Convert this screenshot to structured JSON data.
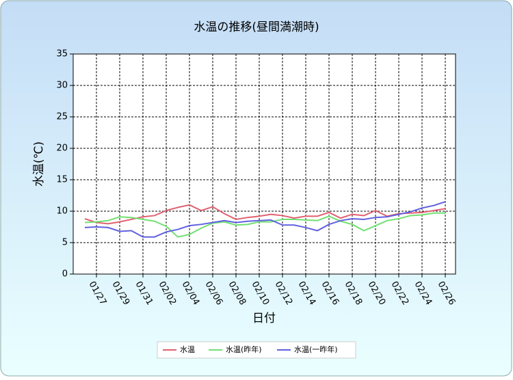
{
  "chart_data": {
    "type": "line",
    "title": "水温の推移(昼間満潮時)",
    "x_label": "日付",
    "y_label": "水温(℃)",
    "categories": [
      null,
      "01/27",
      null,
      "01/29",
      null,
      "01/31",
      null,
      "02/02",
      null,
      "02/04",
      null,
      "02/06",
      null,
      "02/08",
      null,
      "02/10",
      null,
      "02/12",
      null,
      "02/14",
      null,
      "02/16",
      null,
      "02/18",
      null,
      "02/20",
      null,
      "02/22",
      null,
      "02/24",
      null,
      "02/26"
    ],
    "series": [
      {
        "name": "水温",
        "color": "#e06070",
        "values": [
          8.8,
          8.2,
          8.0,
          8.3,
          8.7,
          9.1,
          9.3,
          10.1,
          10.6,
          11.0,
          10.1,
          10.7,
          9.6,
          8.7,
          9.0,
          9.2,
          9.5,
          9.3,
          8.9,
          9.2,
          9.2,
          9.8,
          8.9,
          9.5,
          9.3,
          10.1,
          9.2,
          9.6,
          9.7,
          9.8,
          10.1,
          10.4
        ]
      },
      {
        "name": "水温(昨年)",
        "color": "#70e070",
        "values": [
          8.2,
          8.3,
          8.5,
          9.1,
          9.0,
          8.7,
          8.4,
          7.6,
          5.9,
          6.3,
          7.3,
          8.1,
          8.3,
          7.8,
          7.9,
          8.3,
          8.3,
          8.7,
          8.7,
          8.6,
          8.5,
          9.2,
          8.4,
          7.9,
          6.9,
          7.7,
          8.5,
          8.8,
          9.3,
          9.4,
          9.7,
          9.7
        ]
      },
      {
        "name": "水温(一昨年)",
        "color": "#6060e0",
        "values": [
          7.4,
          7.5,
          7.4,
          6.8,
          6.9,
          5.9,
          5.9,
          6.7,
          7.1,
          7.7,
          7.9,
          8.2,
          8.5,
          8.2,
          8.4,
          8.5,
          8.6,
          7.8,
          7.8,
          7.4,
          6.9,
          7.9,
          8.5,
          8.8,
          8.7,
          9.0,
          9.1,
          9.5,
          9.9,
          10.5,
          10.9,
          11.5
        ]
      }
    ],
    "ylim": [
      0,
      35
    ],
    "yticks": [
      0,
      5,
      10,
      15,
      20,
      25,
      30,
      35
    ],
    "grid": true,
    "legend": "bottom"
  }
}
